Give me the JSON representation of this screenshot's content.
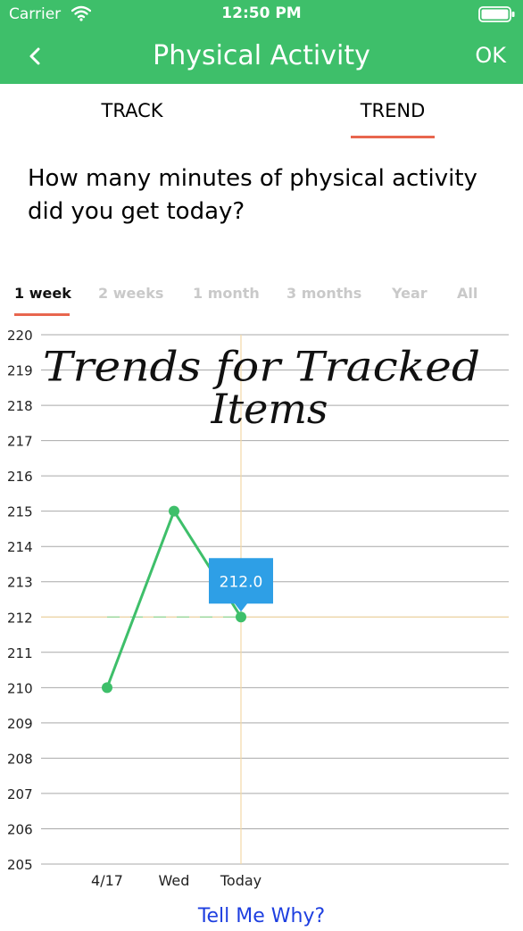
{
  "status": {
    "carrier": "Carrier",
    "time": "12:50 PM",
    "icons": [
      "wifi-icon",
      "battery-icon"
    ]
  },
  "nav": {
    "back_icon": "chevron-left-icon",
    "title": "Physical Activity",
    "ok": "OK"
  },
  "tabs": {
    "track": "TRACK",
    "trend": "TREND",
    "selected": "trend"
  },
  "question": "How many minutes of physical activity did you get today?",
  "ranges": {
    "items": [
      "1 week",
      "2 weeks",
      "1 month",
      "3 months",
      "Year",
      "All"
    ],
    "selected": "1 week"
  },
  "colors": {
    "header": "#3ebf6a",
    "accent": "#e8664e",
    "line": "#3ebf6a",
    "marker": "#2e9fe6",
    "link": "#1e3fe0"
  },
  "chart_data": {
    "type": "line",
    "x": [
      "4/17",
      "Wed",
      "Today"
    ],
    "series": [
      {
        "values": [
          210,
          215,
          212
        ]
      }
    ],
    "ylim": [
      205,
      220
    ],
    "yticks": [
      220,
      219,
      218,
      217,
      216,
      215,
      214,
      213,
      212,
      211,
      210,
      209,
      208,
      207,
      206,
      205
    ],
    "average": 212,
    "highlight": {
      "x": "Today",
      "y": 212,
      "label": "212.0"
    },
    "annotation": [
      "Trends for Tracked",
      "Items"
    ],
    "grid": true
  },
  "footer": {
    "link": "Tell Me Why?"
  }
}
